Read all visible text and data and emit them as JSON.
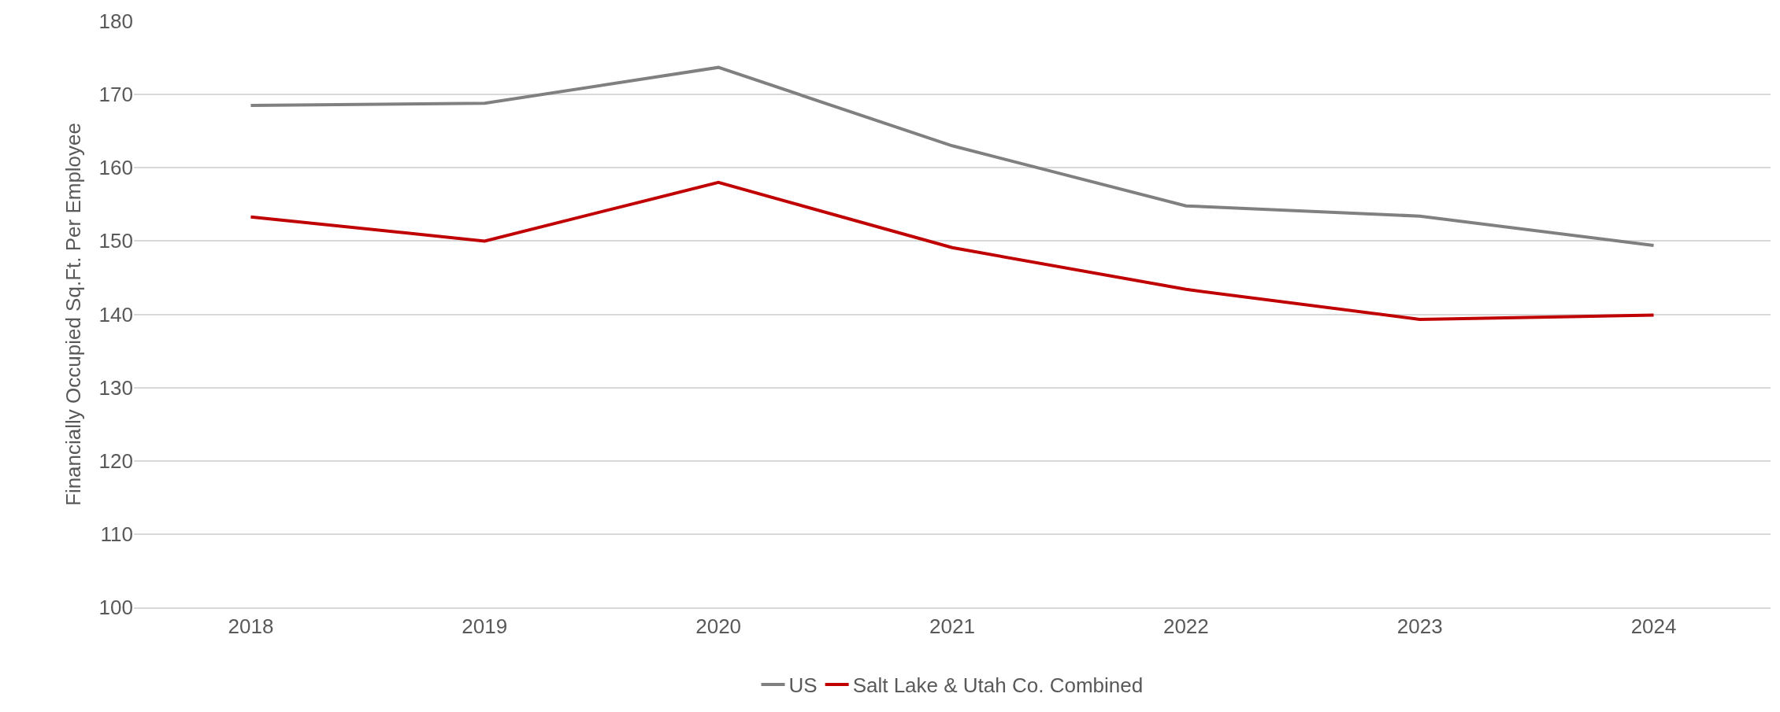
{
  "chart_data": {
    "type": "line",
    "ylabel": "Financially Occupied Sq.Ft. Per Employee",
    "categories": [
      "2018",
      "2019",
      "2020",
      "2021",
      "2022",
      "2023",
      "2024"
    ],
    "series": [
      {
        "name": "US",
        "color": "#808080",
        "values": [
          168.5,
          168.8,
          173.7,
          163.0,
          154.8,
          153.4,
          149.4
        ]
      },
      {
        "name": "Salt Lake & Utah Co. Combined",
        "color": "#c00000",
        "values": [
          153.3,
          150.0,
          158.0,
          149.1,
          143.4,
          139.3,
          139.9
        ]
      }
    ],
    "ylim": [
      100,
      180
    ],
    "yticks": [
      100,
      110,
      120,
      130,
      140,
      150,
      160,
      170,
      180
    ],
    "grid": "y",
    "legend": "bottom",
    "marker": "none",
    "line_style": "solid"
  }
}
